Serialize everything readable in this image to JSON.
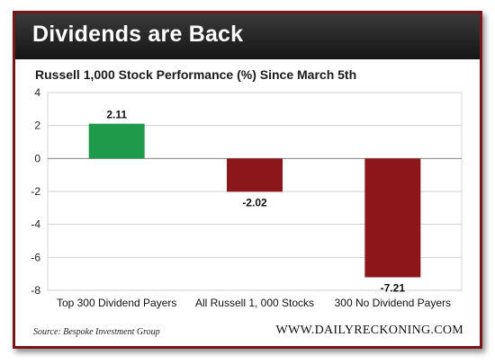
{
  "banner": {
    "title": "Dividends are Back",
    "bg_color": "#1e1e1e",
    "border_color": "#7a1518"
  },
  "footer": {
    "source": "Source: Bespoke Investment Group",
    "brand": "WWW.DAILYRECKONING.COM"
  },
  "chart_data": {
    "type": "bar",
    "title": "Russell 1,000 Stock Performance (%) Since March 5th",
    "xlabel": "",
    "ylabel": "",
    "categories": [
      "Top 300 Dividend Payers",
      "All Russell 1, 000 Stocks",
      "300 No Dividend Payers"
    ],
    "values": [
      2.11,
      -2.02,
      -7.21
    ],
    "value_labels": [
      "2.11",
      "-2.02",
      "-7.21"
    ],
    "colors": [
      "#1f9a4a",
      "#8b171a",
      "#8b171a"
    ],
    "ylim": [
      -8,
      4
    ],
    "yticks": [
      4,
      2,
      0,
      -2,
      -4,
      -6,
      -8
    ],
    "ytick_labels": [
      "4",
      "2",
      "0",
      "-2",
      "-4",
      "-6",
      "-8"
    ],
    "grid": true,
    "legend": "none"
  }
}
